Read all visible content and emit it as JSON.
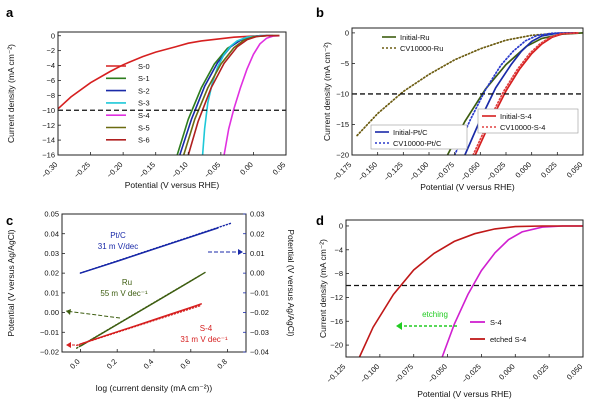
{
  "chart_data": [
    {
      "panel": "a",
      "type": "line",
      "xlabel": "Potential (V versus RHE)",
      "ylabel": "Current density (mA cm⁻²)",
      "xlim": [
        -0.3,
        0.05
      ],
      "ylim": [
        -16,
        0.5
      ],
      "xticks": [
        -0.3,
        -0.25,
        -0.2,
        -0.15,
        -0.1,
        -0.05,
        0.0,
        0.05
      ],
      "yticks": [
        0,
        -2,
        -4,
        -6,
        -8,
        -10,
        -12,
        -14,
        -16
      ],
      "reference_line_y": -10,
      "legend_position": "center",
      "series": [
        {
          "name": "S-0",
          "color": "#d62020",
          "x": [
            -0.3,
            -0.28,
            -0.25,
            -0.22,
            -0.2,
            -0.17,
            -0.15,
            -0.12,
            -0.1,
            -0.08,
            -0.05,
            -0.03,
            0.0,
            0.02,
            0.04
          ],
          "y": [
            -9.8,
            -8.2,
            -6.3,
            -4.8,
            -3.9,
            -2.8,
            -2.2,
            -1.5,
            -1.0,
            -0.7,
            -0.4,
            -0.2,
            -0.05,
            0.0,
            0.0
          ]
        },
        {
          "name": "S-1",
          "color": "#2e7d1e",
          "x": [
            -0.117,
            -0.1,
            -0.08,
            -0.06,
            -0.04,
            -0.02,
            -0.01,
            0.0,
            0.02,
            0.04
          ],
          "y": [
            -16,
            -11.2,
            -7.0,
            -3.8,
            -1.7,
            -0.6,
            -0.3,
            -0.1,
            0.0,
            0.0
          ]
        },
        {
          "name": "S-2",
          "color": "#1a2aa8",
          "x": [
            -0.113,
            -0.095,
            -0.075,
            -0.055,
            -0.035,
            -0.02,
            -0.005,
            0.01,
            0.03
          ],
          "y": [
            -16,
            -11.2,
            -6.8,
            -3.6,
            -1.5,
            -0.6,
            -0.15,
            0.0,
            0.0
          ]
        },
        {
          "name": "S-3",
          "color": "#1ec8d8",
          "x": [
            -0.078,
            -0.075,
            -0.07,
            -0.063,
            -0.055,
            -0.045,
            -0.035,
            -0.025,
            -0.01,
            0.01,
            0.03
          ],
          "y": [
            -16,
            -12.5,
            -9.0,
            -6.3,
            -4.2,
            -2.5,
            -1.4,
            -0.7,
            -0.2,
            0.0,
            0.0
          ]
        },
        {
          "name": "S-4",
          "color": "#e030e0",
          "x": [
            -0.045,
            -0.038,
            -0.03,
            -0.02,
            -0.01,
            0.0,
            0.01,
            0.02,
            0.03,
            0.04
          ],
          "y": [
            -16,
            -12.5,
            -9.8,
            -7.0,
            -4.5,
            -2.5,
            -1.1,
            -0.35,
            -0.05,
            0.0
          ]
        },
        {
          "name": "S-5",
          "color": "#6b6b10",
          "x": [
            -0.107,
            -0.09,
            -0.07,
            -0.05,
            -0.03,
            -0.015,
            0.0,
            0.02,
            0.04
          ],
          "y": [
            -16,
            -11.2,
            -7.0,
            -3.8,
            -1.6,
            -0.6,
            -0.15,
            0.0,
            0.0
          ]
        },
        {
          "name": "S-6",
          "color": "#b02020",
          "x": [
            -0.1,
            -0.085,
            -0.065,
            -0.045,
            -0.025,
            -0.01,
            0.005,
            0.02,
            0.04
          ],
          "y": [
            -16,
            -11.5,
            -7.0,
            -3.7,
            -1.5,
            -0.55,
            -0.1,
            0.0,
            0.0
          ]
        }
      ]
    },
    {
      "panel": "b",
      "type": "line",
      "xlabel": "Potential (V versus RHE)",
      "ylabel": "Current density (mA cm⁻²)",
      "xlim": [
        -0.175,
        0.05
      ],
      "ylim": [
        -20,
        0.8
      ],
      "xticks": [
        -0.175,
        -0.15,
        -0.125,
        -0.1,
        -0.075,
        -0.05,
        -0.025,
        0.0,
        0.025,
        0.05
      ],
      "yticks": [
        0,
        -5,
        -10,
        -15,
        -20
      ],
      "reference_line_y": -10,
      "series": [
        {
          "name": "Initial-Ru",
          "color": "#3d5d10",
          "dash": "solid",
          "legend": "top-left",
          "x": [
            -0.082,
            -0.065,
            -0.045,
            -0.025,
            -0.005,
            0.01,
            0.03,
            0.05
          ],
          "y": [
            -20,
            -14.5,
            -9.2,
            -5.2,
            -2.2,
            -0.9,
            -0.2,
            0.0
          ]
        },
        {
          "name": "CV10000-Ru",
          "color": "#6b5b10",
          "dash": "dots",
          "legend": "top-left",
          "x": [
            -0.17,
            -0.15,
            -0.125,
            -0.1,
            -0.075,
            -0.05,
            -0.025,
            0.0,
            0.025,
            0.045
          ],
          "y": [
            -16.8,
            -13.2,
            -9.6,
            -6.8,
            -4.4,
            -2.6,
            -1.2,
            -0.4,
            -0.05,
            0.0
          ]
        },
        {
          "name": "Initial-Pt/C",
          "color": "#1a2aa8",
          "dash": "solid",
          "legend": "bottom-left",
          "x": [
            -0.065,
            -0.05,
            -0.035,
            -0.02,
            -0.01,
            0.0,
            0.01,
            0.025,
            0.045
          ],
          "y": [
            -20,
            -14.2,
            -9.0,
            -5.2,
            -3.0,
            -1.4,
            -0.5,
            -0.05,
            0.0
          ]
        },
        {
          "name": "CV10000-Pt/C",
          "color": "#2a3acc",
          "dash": "dots",
          "legend": "bottom-left",
          "x": [
            -0.075,
            -0.06,
            -0.045,
            -0.03,
            -0.018,
            -0.006,
            0.005,
            0.02,
            0.04
          ],
          "y": [
            -20,
            -14.3,
            -9.3,
            -5.3,
            -3.0,
            -1.3,
            -0.45,
            -0.05,
            0.0
          ]
        },
        {
          "name": "Initial-S-4",
          "color": "#d62020",
          "dash": "solid",
          "legend": "right",
          "x": [
            -0.055,
            -0.04,
            -0.025,
            -0.012,
            0.0,
            0.01,
            0.02,
            0.03,
            0.045
          ],
          "y": [
            -20,
            -14.5,
            -9.5,
            -6.0,
            -3.4,
            -1.8,
            -0.7,
            -0.15,
            0.0
          ]
        },
        {
          "name": "CV10000-S-4",
          "color": "#e04040",
          "dash": "dots",
          "legend": "right",
          "x": [
            -0.057,
            -0.042,
            -0.027,
            -0.014,
            -0.002,
            0.008,
            0.018,
            0.028,
            0.045
          ],
          "y": [
            -20,
            -14.5,
            -9.5,
            -6.0,
            -3.4,
            -1.8,
            -0.7,
            -0.15,
            0.0
          ]
        }
      ]
    },
    {
      "panel": "c",
      "type": "line",
      "xlabel": "log (current density (mA cm⁻²))",
      "ylabel": "Potential (V versus Ag/AgCl)",
      "ylabel_right": "Potential (V versus Ag/AgCl)",
      "xlim": [
        -0.1,
        0.9
      ],
      "ylim_left": [
        -0.02,
        0.05
      ],
      "ylim_right": [
        -0.04,
        0.03
      ],
      "xticks": [
        0.0,
        0.2,
        0.4,
        0.6,
        0.8
      ],
      "yticks_left": [
        -0.02,
        -0.01,
        0.0,
        0.01,
        0.02,
        0.03,
        0.04,
        0.05
      ],
      "yticks_right": [
        -0.04,
        -0.03,
        -0.02,
        -0.01,
        0.0,
        0.01,
        0.02,
        0.03
      ],
      "annotations": [
        {
          "text": "Pt/C",
          "color": "#1a2aa8"
        },
        {
          "text": "31 m V/dec",
          "color": "#1a2aa8"
        },
        {
          "text": "Ru",
          "color": "#3d5d10"
        },
        {
          "text": "55 m V dec⁻¹",
          "color": "#3d5d10"
        },
        {
          "text": "S-4",
          "color": "#d62020"
        },
        {
          "text": "31 m V dec⁻¹",
          "color": "#d62020"
        }
      ],
      "series": [
        {
          "name": "Pt/C",
          "axis": "right",
          "color": "#1a2aa8",
          "x": [
            0.0,
            0.2,
            0.4,
            0.6,
            0.75
          ],
          "y": [
            0.0,
            0.006,
            0.0122,
            0.0184,
            0.023
          ],
          "fit_x": [
            0.0,
            0.82
          ],
          "fit_y": [
            0.0,
            0.0254
          ]
        },
        {
          "name": "Ru",
          "axis": "left",
          "color": "#3d5d10",
          "x": [
            0.0,
            0.15,
            0.3,
            0.45,
            0.6,
            0.68
          ],
          "y": [
            -0.017,
            -0.0088,
            -0.0005,
            0.0077,
            0.016,
            0.0205
          ],
          "fit_x": [
            -0.02,
            0.65
          ],
          "fit_y": [
            -0.018,
            0.0188
          ]
        },
        {
          "name": "S-4",
          "axis": "left",
          "color": "#d62020",
          "x": [
            0.0,
            0.15,
            0.3,
            0.45,
            0.6,
            0.66
          ],
          "y": [
            -0.016,
            -0.0113,
            -0.0067,
            -0.002,
            0.0026,
            0.0045
          ],
          "fit_x": [
            -0.02,
            0.65
          ],
          "fit_y": [
            -0.0166,
            0.0035
          ]
        }
      ]
    },
    {
      "panel": "d",
      "type": "line",
      "xlabel": "Potential (V versus RHE)",
      "ylabel": "Current density (mA cm⁻²)",
      "xlim": [
        -0.125,
        0.05
      ],
      "ylim": [
        -22,
        1
      ],
      "xticks": [
        -0.125,
        -0.1,
        -0.075,
        -0.05,
        -0.025,
        0.0,
        0.025,
        0.05
      ],
      "yticks": [
        0,
        -4,
        -8,
        -12,
        -16,
        -20
      ],
      "reference_line_y": -10,
      "annotation": {
        "text": "etching",
        "color": "#22cc22"
      },
      "series": [
        {
          "name": "S-4",
          "color": "#d020d0",
          "x": [
            -0.054,
            -0.045,
            -0.035,
            -0.025,
            -0.015,
            -0.005,
            0.005,
            0.02,
            0.035,
            0.05
          ],
          "y": [
            -22,
            -16.5,
            -11.5,
            -7.5,
            -4.5,
            -2.3,
            -1.0,
            -0.2,
            0.0,
            0.0
          ]
        },
        {
          "name": "etched S-4",
          "color": "#c01818",
          "x": [
            -0.115,
            -0.105,
            -0.09,
            -0.075,
            -0.06,
            -0.045,
            -0.03,
            -0.015,
            0.0,
            0.02,
            0.05
          ],
          "y": [
            -22,
            -17.0,
            -11.5,
            -7.4,
            -4.6,
            -2.6,
            -1.3,
            -0.5,
            -0.1,
            0.0,
            0.0
          ]
        }
      ]
    }
  ]
}
